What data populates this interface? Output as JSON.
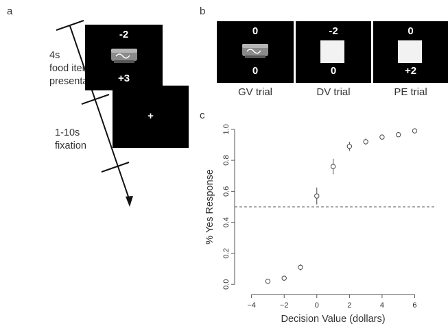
{
  "panels": {
    "a": {
      "letter": "a",
      "phase1": {
        "line1": "4s",
        "line2": "food item",
        "line3": "presentation"
      },
      "phase2": {
        "line1": "1-10s",
        "line2": "fixation"
      },
      "screen1": {
        "top": "-2",
        "bottom": "+3",
        "image": "candy-bar-icon"
      },
      "screen2": {
        "center": "+"
      }
    },
    "b": {
      "letter": "b",
      "trials": [
        {
          "top": "0",
          "bottom": "0",
          "caption": "GV trial",
          "content": "candy-bar"
        },
        {
          "top": "-2",
          "bottom": "0",
          "caption": "DV trial",
          "content": "white-square"
        },
        {
          "top": "0",
          "bottom": "+2",
          "caption": "PE trial",
          "content": "white-square"
        }
      ]
    },
    "c": {
      "letter": "c"
    }
  },
  "chart_data": {
    "type": "scatter",
    "xlabel": "Decision Value (dollars)",
    "ylabel": "% Yes Response",
    "xlim": [
      -4.7,
      7.2
    ],
    "ylim": [
      -0.03,
      1.03
    ],
    "xticks": [
      -4,
      -2,
      0,
      2,
      4,
      6
    ],
    "yticks": [
      0.0,
      0.2,
      0.4,
      0.6,
      0.8,
      1.0
    ],
    "xtick_labels": [
      "−4",
      "−2",
      "0",
      "2",
      "4",
      "6"
    ],
    "ytick_labels": [
      "0.0",
      "0.2",
      "0.4",
      "0.6",
      "0.8",
      "1.0"
    ],
    "reference_line": {
      "y": 0.5,
      "style": "dashed"
    },
    "points": [
      {
        "x": -3,
        "y": 0.02,
        "err": 0.0
      },
      {
        "x": -2,
        "y": 0.04,
        "err": 0.01
      },
      {
        "x": -1,
        "y": 0.11,
        "err": 0.02
      },
      {
        "x": 0,
        "y": 0.57,
        "err": 0.055
      },
      {
        "x": 1,
        "y": 0.76,
        "err": 0.05
      },
      {
        "x": 2,
        "y": 0.89,
        "err": 0.03
      },
      {
        "x": 3,
        "y": 0.92,
        "err": 0.02
      },
      {
        "x": 4,
        "y": 0.95,
        "err": 0.015
      },
      {
        "x": 5,
        "y": 0.965,
        "err": 0.01
      },
      {
        "x": 6,
        "y": 0.99,
        "err": 0.005
      }
    ]
  }
}
